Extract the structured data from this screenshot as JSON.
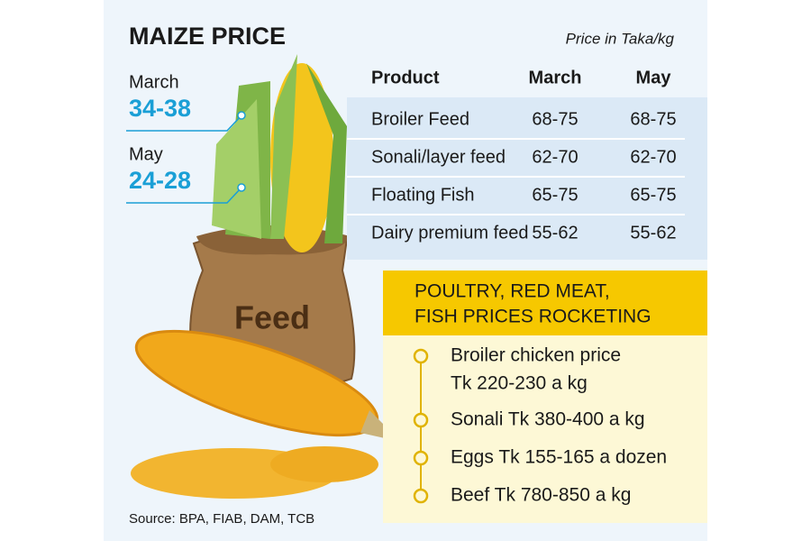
{
  "header": {
    "title": "MAIZE PRICE",
    "unit": "Price in Taka/kg"
  },
  "maize_price": [
    {
      "month": "March",
      "range": "34-38"
    },
    {
      "month": "May",
      "range": "24-28"
    }
  ],
  "illustration": {
    "sack_label": "Feed"
  },
  "table": {
    "columns": [
      "Product",
      "March",
      "May"
    ],
    "rows": [
      [
        "Broiler Feed",
        "68-75",
        "68-75"
      ],
      [
        "Sonali/layer feed",
        "62-70",
        "62-70"
      ],
      [
        "Floating Fish",
        "65-75",
        "65-75"
      ],
      [
        "Dairy premium feed",
        "55-62",
        "55-62"
      ]
    ]
  },
  "callout": {
    "title": [
      "POULTRY, RED MEAT,",
      "FISH PRICES ROCKETING"
    ],
    "bullets": [
      {
        "lines": [
          "Broiler chicken price",
          "Tk 220-230 a kg"
        ]
      },
      {
        "lines": [
          "Sonali Tk 380-400 a kg"
        ]
      },
      {
        "lines": [
          "Eggs Tk 155-165 a dozen"
        ]
      },
      {
        "lines": [
          "Beef Tk 780-850 a kg"
        ]
      }
    ]
  },
  "source": "Source: BPA, FIAB, DAM, TCB"
}
